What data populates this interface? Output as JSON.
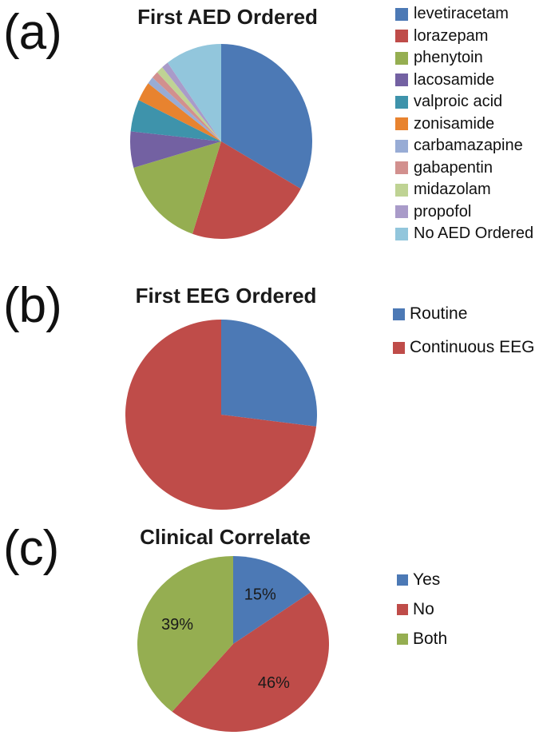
{
  "figure": {
    "background_color": "#ffffff",
    "text_color": "#111111"
  },
  "chart_data": [
    {
      "type": "pie",
      "panel_label": "(a)",
      "title": "First AED Ordered",
      "legend_position": "right",
      "start_angle_deg": 0,
      "direction": "clockwise",
      "categories": [
        "levetiracetam",
        "lorazepam",
        "phenytoin",
        "lacosamide",
        "valproic acid",
        "zonisamide",
        "carbamazapine",
        "gabapentin",
        "midazolam",
        "propofol",
        "No AED Ordered"
      ],
      "values": [
        33,
        22,
        15.5,
        6,
        5.3,
        3.2,
        1.2,
        1.2,
        1.2,
        1.2,
        10
      ],
      "values_unit": "percent_estimated",
      "colors": [
        "#4C79B5",
        "#BF4C49",
        "#95AE51",
        "#7361A2",
        "#3E93AB",
        "#E8832F",
        "#98ACD5",
        "#D2908E",
        "#BFD394",
        "#A99BC9",
        "#92C6DC"
      ],
      "slice_labels": [
        "",
        "",
        "",
        "",
        "",
        "",
        "",
        "",
        "",
        "",
        ""
      ]
    },
    {
      "type": "pie",
      "panel_label": "(b)",
      "title": "First EEG Ordered",
      "legend_position": "right",
      "start_angle_deg": 0,
      "direction": "clockwise",
      "categories": [
        "Routine",
        "Continuous EEG"
      ],
      "values": [
        27,
        73
      ],
      "values_unit": "percent_estimated",
      "colors": [
        "#4C79B5",
        "#BF4C49"
      ],
      "slice_labels": [
        "",
        ""
      ]
    },
    {
      "type": "pie",
      "panel_label": "(c)",
      "title": "Clinical Correlate",
      "legend_position": "right",
      "start_angle_deg": 0,
      "direction": "clockwise",
      "categories": [
        "Yes",
        "No",
        "Both"
      ],
      "values": [
        15,
        46,
        39
      ],
      "values_unit": "percent",
      "colors": [
        "#4C79B5",
        "#BF4C49",
        "#95AE51"
      ],
      "slice_labels": [
        "15%",
        "46%",
        "39%"
      ]
    }
  ]
}
